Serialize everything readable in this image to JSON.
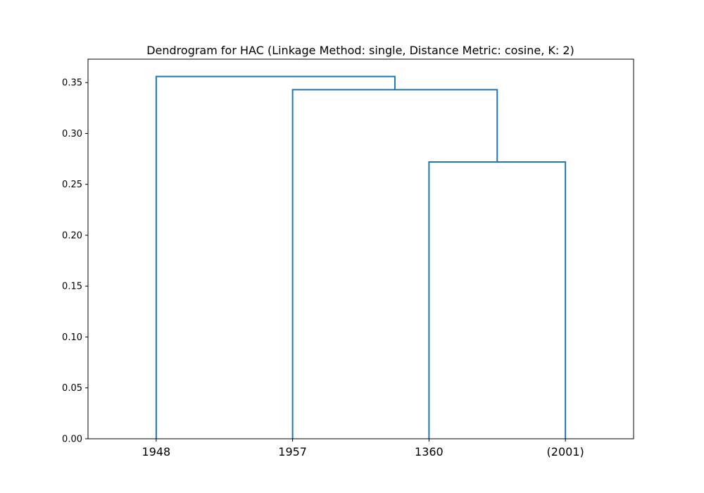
{
  "chart_data": {
    "type": "dendrogram",
    "title": "Dendrogram for HAC (Linkage Method: single, Distance Metric: cosine, K: 2)",
    "xlabel": "",
    "ylabel": "",
    "leaves": [
      "1948",
      "1957",
      "1360",
      "(2001)"
    ],
    "ylim": [
      0,
      0.373
    ],
    "yticks": [
      0.0,
      0.05,
      0.1,
      0.15,
      0.2,
      0.25,
      0.3,
      0.35
    ],
    "ytick_labels": [
      "0.00",
      "0.05",
      "0.10",
      "0.15",
      "0.20",
      "0.25",
      "0.30",
      "0.35"
    ],
    "merges": [
      {
        "left": "1360",
        "right": "(2001)",
        "height": 0.272
      },
      {
        "left": "1957",
        "right": "1360 + (2001)",
        "height": 0.343
      },
      {
        "left": "1948",
        "right": "1957 + 1360 + (2001)",
        "height": 0.356
      }
    ],
    "link_color": "#1f77b4",
    "grid": false
  }
}
